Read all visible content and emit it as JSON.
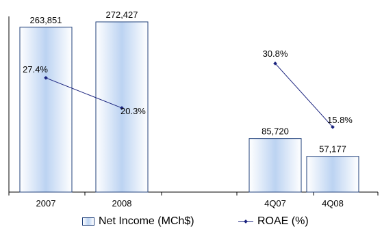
{
  "chart_data": {
    "type": "bar",
    "categories": [
      "2007",
      "2008",
      "4Q07",
      "4Q08"
    ],
    "series": [
      {
        "name": "Net Income (MCh$)",
        "type": "bar",
        "values": [
          263851,
          272427,
          85720,
          57177
        ],
        "labels": [
          "263,851",
          "272,427",
          "85,720",
          "57,177"
        ]
      },
      {
        "name": "ROAE (%)",
        "type": "line",
        "values": [
          27.4,
          20.3,
          30.8,
          15.8
        ],
        "labels": [
          "27.4%",
          "20.3%",
          "30.8%",
          "15.8%"
        ],
        "segments": [
          [
            0,
            1
          ],
          [
            2,
            3
          ]
        ]
      }
    ],
    "legend_position": "bottom",
    "grid": false,
    "colors": {
      "bar_edge": "#1f3f7a",
      "bar_fill": "#bcd3f2",
      "line": "#1a237e"
    }
  },
  "legend": {
    "bar_label": "Net Income (MCh$)",
    "line_label": "ROAE (%)"
  }
}
